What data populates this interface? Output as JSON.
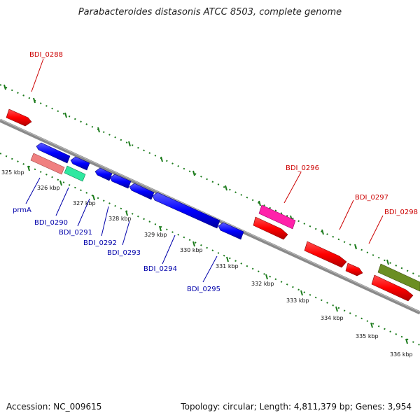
{
  "title": "Parabacteroides distasonis ATCC 8503, complete genome",
  "footer": {
    "accession": "Accession: NC_009615",
    "topology": "Topology: circular; Length: 4,811,379 bp; Genes: 3,954"
  },
  "colors": {
    "forward_label": "#cc0000",
    "reverse_label": "#0000aa",
    "tick": "#1a7a1a",
    "axis": "#8a8a8a"
  },
  "kbp_labels": [
    "325 kbp",
    "326 kbp",
    "327 kbp",
    "328 kbp",
    "329 kbp",
    "330 kbp",
    "331 kbp",
    "332 kbp",
    "333 kbp",
    "334 kbp",
    "335 kbp",
    "336 kbp"
  ],
  "genes_forward": [
    {
      "id": "g0288",
      "label": "BDI_0288",
      "color": "#ff0000"
    },
    {
      "id": "g0296",
      "label": "BDI_0296",
      "color": "#ff22aa"
    },
    {
      "id": "g0297",
      "label": "BDI_0297",
      "color": "#ff0000"
    },
    {
      "id": "g0298",
      "label": "BDI_0298",
      "color": "#6b8e23"
    }
  ],
  "genes_reverse": [
    {
      "id": "prmA",
      "label": "prmA",
      "color": "#f08080"
    },
    {
      "id": "g0290",
      "label": "BDI_0290",
      "color": "#2ee8a0"
    },
    {
      "id": "g0291",
      "label": "BDI_0291",
      "color": "#0000ff"
    },
    {
      "id": "g0292",
      "label": "BDI_0292",
      "color": "#0000ff"
    },
    {
      "id": "g0293",
      "label": "BDI_0293",
      "color": "#0000ff"
    },
    {
      "id": "g0294",
      "label": "BDI_0294",
      "color": "#0000ff"
    },
    {
      "id": "g0295",
      "label": "BDI_0295",
      "color": "#0000ff"
    }
  ]
}
